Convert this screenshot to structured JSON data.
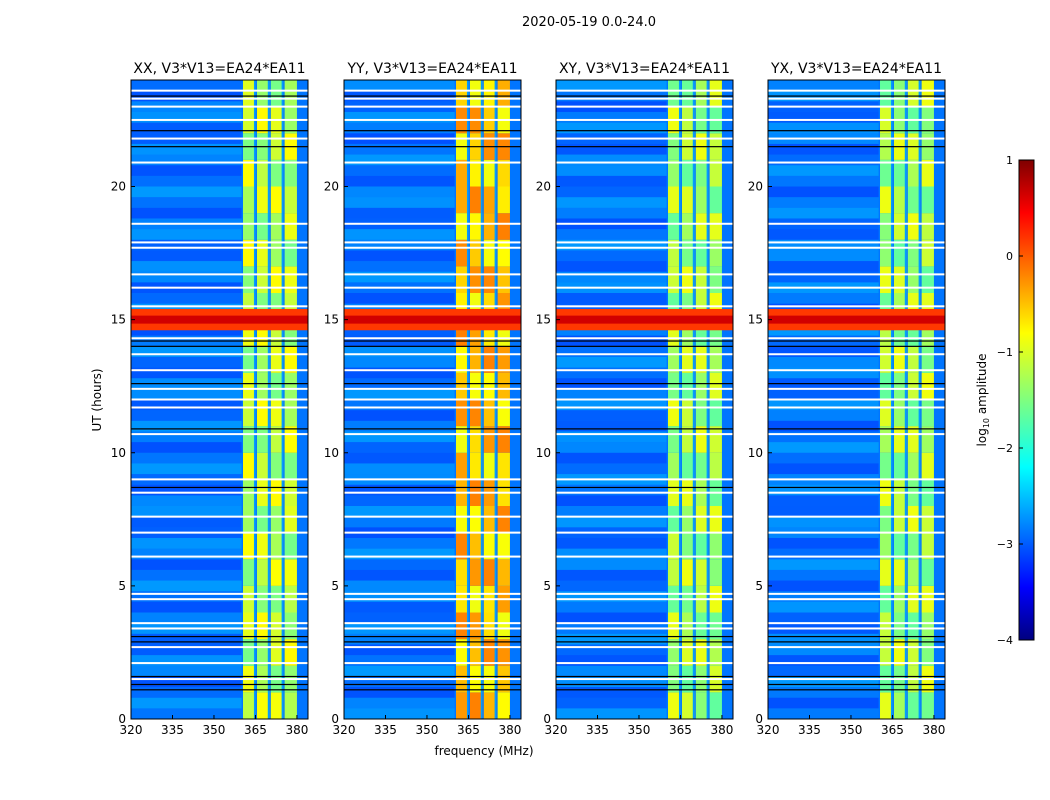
{
  "chart_data": {
    "type": "heatmap",
    "title": "2020-05-19 0.0-24.0",
    "xlabel": "frequency (MHz)",
    "ylabel": "UT (hours)",
    "xlim": [
      320,
      384
    ],
    "ylim": [
      0,
      24
    ],
    "xticks": [
      "320",
      "335",
      "350",
      "365",
      "380"
    ],
    "xtick_values": [
      320,
      335,
      350,
      365,
      380
    ],
    "yticks": [
      "0",
      "5",
      "10",
      "15",
      "20"
    ],
    "ytick_values": [
      0,
      5,
      10,
      15,
      20
    ],
    "panels": [
      {
        "title": "XX, V3*V13=EA24*EA11",
        "band_level": -1.2
      },
      {
        "title": "YY, V3*V13=EA24*EA11",
        "band_level": -0.6
      },
      {
        "title": "XY, V3*V13=EA24*EA11",
        "band_level": -1.3
      },
      {
        "title": "YX, V3*V13=EA24*EA11",
        "band_level": -1.3
      }
    ],
    "background_level": -2.8,
    "rfi_band": {
      "freq_range": [
        360.5,
        380
      ],
      "gap_freqs": [
        365,
        370,
        375
      ]
    },
    "strong_rfi_hours": [
      14.6,
      15.4
    ],
    "strong_rfi_level": 0.1,
    "white_flag_hours": [
      23.6,
      23.3,
      23.0,
      22.5,
      21.8,
      20.9,
      18.6,
      17.9,
      17.7,
      16.7,
      16.2,
      15.5,
      14.3,
      13.7,
      13.1,
      12.4,
      12.0,
      11.7,
      10.7,
      9.0,
      8.5,
      7.6,
      7.0,
      6.1,
      4.7,
      4.5,
      3.6,
      3.4,
      2.7,
      2.1,
      1.5
    ],
    "black_flag_hours": [
      23.4,
      22.1,
      21.5,
      14.2,
      14.0,
      12.6,
      10.9,
      8.7,
      3.1,
      2.9,
      1.6,
      1.3,
      1.1
    ],
    "colorbar": {
      "label": "log10 amplitude",
      "label_main": "log",
      "label_sub": "10",
      "label_rest": " amplitude",
      "range": [
        -4,
        1
      ],
      "ticks": [
        "1",
        "0",
        "−1",
        "−2",
        "−3",
        "−4"
      ],
      "tick_values": [
        1,
        0,
        -1,
        -2,
        -3,
        -4
      ],
      "colormap": "jet"
    }
  }
}
